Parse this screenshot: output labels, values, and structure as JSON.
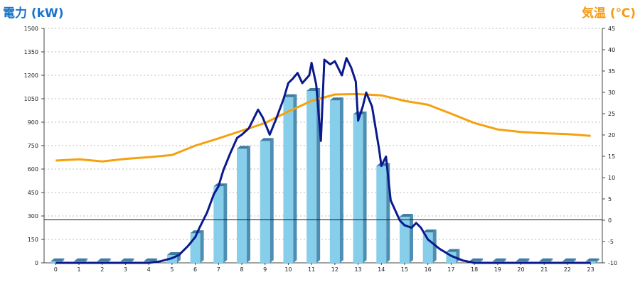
{
  "chart_data": {
    "type": "bar",
    "title": "",
    "ylabel": "電力 (kW)",
    "y2label": "気温 (℃)",
    "categories": [
      "0",
      "1",
      "2",
      "3",
      "4",
      "5",
      "6",
      "7",
      "8",
      "9",
      "10",
      "11",
      "12",
      "13",
      "14",
      "15",
      "16",
      "17",
      "18",
      "19",
      "20",
      "21",
      "22",
      "23"
    ],
    "ylim": [
      0,
      1500
    ],
    "y2lim": [
      -10,
      45
    ],
    "yticks": [
      "0",
      "150",
      "300",
      "450",
      "600",
      "750",
      "900",
      "1050",
      "1200",
      "1350",
      "1500"
    ],
    "y2ticks": [
      "-10",
      "-5",
      "0",
      "5",
      "10",
      "15",
      "20",
      "25",
      "30",
      "35",
      "40",
      "45"
    ],
    "reference_line_value": 275,
    "colors": {
      "bars": "#87ceeb",
      "power_line": "#0a1a8c",
      "temperature_line": "#f5a10f",
      "left_title": "#1a73c8",
      "right_title": "#f59a14"
    },
    "series": [
      {
        "kind": "bar",
        "axis": "left",
        "values": [
          10,
          10,
          10,
          10,
          10,
          50,
          190,
          490,
          730,
          780,
          1060,
          1100,
          1040,
          950,
          620,
          295,
          195,
          70,
          10,
          10,
          10,
          10,
          10,
          10
        ]
      },
      {
        "kind": "line",
        "axis": "left",
        "points": [
          [
            0,
            0
          ],
          [
            4,
            0
          ],
          [
            4.5,
            10
          ],
          [
            5,
            30
          ],
          [
            5.3,
            50
          ],
          [
            5.7,
            110
          ],
          [
            6,
            165
          ],
          [
            6.2,
            230
          ],
          [
            6.5,
            320
          ],
          [
            6.8,
            440
          ],
          [
            7,
            490
          ],
          [
            7.2,
            590
          ],
          [
            7.5,
            700
          ],
          [
            7.8,
            800
          ],
          [
            8,
            820
          ],
          [
            8.3,
            860
          ],
          [
            8.5,
            920
          ],
          [
            8.7,
            980
          ],
          [
            8.9,
            930
          ],
          [
            9.2,
            820
          ],
          [
            9.5,
            930
          ],
          [
            9.8,
            1050
          ],
          [
            10,
            1150
          ],
          [
            10.2,
            1180
          ],
          [
            10.4,
            1215
          ],
          [
            10.6,
            1150
          ],
          [
            10.9,
            1200
          ],
          [
            11,
            1280
          ],
          [
            11.2,
            1140
          ],
          [
            11.4,
            780
          ],
          [
            11.55,
            1300
          ],
          [
            11.8,
            1270
          ],
          [
            12,
            1290
          ],
          [
            12.3,
            1200
          ],
          [
            12.5,
            1310
          ],
          [
            12.7,
            1250
          ],
          [
            12.9,
            1160
          ],
          [
            13,
            910
          ],
          [
            13.2,
            1000
          ],
          [
            13.35,
            1090
          ],
          [
            13.6,
            1000
          ],
          [
            13.9,
            730
          ],
          [
            14,
            620
          ],
          [
            14.2,
            680
          ],
          [
            14.4,
            400
          ],
          [
            14.8,
            270
          ],
          [
            15,
            240
          ],
          [
            15.3,
            225
          ],
          [
            15.5,
            255
          ],
          [
            15.7,
            225
          ],
          [
            16,
            150
          ],
          [
            16.5,
            90
          ],
          [
            17,
            45
          ],
          [
            17.5,
            15
          ],
          [
            18,
            0
          ],
          [
            23,
            0
          ]
        ]
      },
      {
        "kind": "line",
        "axis": "right",
        "points": [
          [
            0,
            14
          ],
          [
            1,
            14.3
          ],
          [
            2,
            13.8
          ],
          [
            3,
            14.4
          ],
          [
            4,
            14.8
          ],
          [
            5,
            15.3
          ],
          [
            6,
            17.5
          ],
          [
            7,
            19.2
          ],
          [
            8,
            21
          ],
          [
            9,
            22.8
          ],
          [
            10,
            25.5
          ],
          [
            11,
            28
          ],
          [
            12,
            29.5
          ],
          [
            13,
            29.6
          ],
          [
            14,
            29.3
          ],
          [
            15,
            28
          ],
          [
            16,
            27.1
          ],
          [
            17,
            25
          ],
          [
            18,
            22.8
          ],
          [
            19,
            21.3
          ],
          [
            20,
            20.7
          ],
          [
            21,
            20.4
          ],
          [
            22,
            20.2
          ],
          [
            23,
            19.8
          ]
        ]
      }
    ],
    "grid": true
  }
}
